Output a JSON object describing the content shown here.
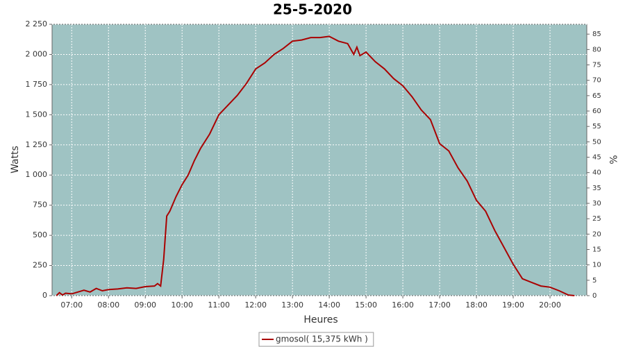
{
  "chart_data": {
    "type": "line",
    "title": "25-5-2020",
    "x_label": "Heures",
    "y_label": "Watts",
    "y2_label": "%",
    "x": [
      "06:35",
      "06:40",
      "06:45",
      "06:50",
      "07:00",
      "07:10",
      "07:20",
      "07:30",
      "07:40",
      "07:50",
      "08:00",
      "08:15",
      "08:30",
      "08:45",
      "09:00",
      "09:15",
      "09:20",
      "09:25",
      "09:30",
      "09:35",
      "09:40",
      "09:50",
      "10:00",
      "10:10",
      "10:20",
      "10:30",
      "10:45",
      "11:00",
      "11:15",
      "11:30",
      "11:45",
      "12:00",
      "12:15",
      "12:30",
      "12:45",
      "13:00",
      "13:15",
      "13:30",
      "13:45",
      "14:00",
      "14:15",
      "14:30",
      "14:40",
      "14:45",
      "14:50",
      "15:00",
      "15:15",
      "15:30",
      "15:45",
      "16:00",
      "16:15",
      "16:30",
      "16:45",
      "17:00",
      "17:15",
      "17:30",
      "17:45",
      "18:00",
      "18:15",
      "18:30",
      "18:45",
      "19:00",
      "19:15",
      "19:30",
      "19:45",
      "20:00",
      "20:15",
      "20:30",
      "20:40"
    ],
    "series": [
      {
        "name": "gmosol( 15,375 kWh )",
        "color": "#aa0000",
        "values": [
          0,
          25,
          5,
          20,
          15,
          30,
          45,
          30,
          60,
          40,
          50,
          55,
          65,
          60,
          75,
          80,
          100,
          80,
          300,
          660,
          700,
          820,
          920,
          1000,
          1120,
          1220,
          1340,
          1500,
          1580,
          1660,
          1760,
          1880,
          1930,
          2000,
          2050,
          2110,
          2120,
          2140,
          2140,
          2150,
          2110,
          2090,
          2000,
          2060,
          1990,
          2020,
          1940,
          1880,
          1800,
          1740,
          1650,
          1540,
          1460,
          1260,
          1200,
          1060,
          950,
          790,
          700,
          540,
          400,
          260,
          140,
          110,
          80,
          70,
          40,
          5,
          0
        ]
      }
    ],
    "xlim": [
      "06:28",
      "21:00"
    ],
    "xticks": [
      "07:00",
      "08:00",
      "09:00",
      "10:00",
      "11:00",
      "12:00",
      "13:00",
      "14:00",
      "15:00",
      "16:00",
      "17:00",
      "18:00",
      "19:00",
      "20:00"
    ],
    "ylim": [
      0,
      2250
    ],
    "yticks": [
      0,
      250,
      500,
      750,
      {
        "value": 1000,
        "label": "1 000"
      },
      {
        "value": 1250,
        "label": "1 250"
      },
      {
        "value": 1500,
        "label": "1 500"
      },
      {
        "value": 1750,
        "label": "1 750"
      },
      {
        "value": 2000,
        "label": "2 000"
      },
      {
        "value": 2250,
        "label": "2 250"
      }
    ],
    "y2lim": [
      0,
      88.2
    ],
    "y2ticks": [
      0,
      5,
      10,
      15,
      20,
      25,
      30,
      35,
      40,
      45,
      50,
      55,
      60,
      65,
      70,
      75,
      80,
      85
    ],
    "grid": true,
    "plot_background": "#9fc3c3",
    "legend": "bottom"
  }
}
